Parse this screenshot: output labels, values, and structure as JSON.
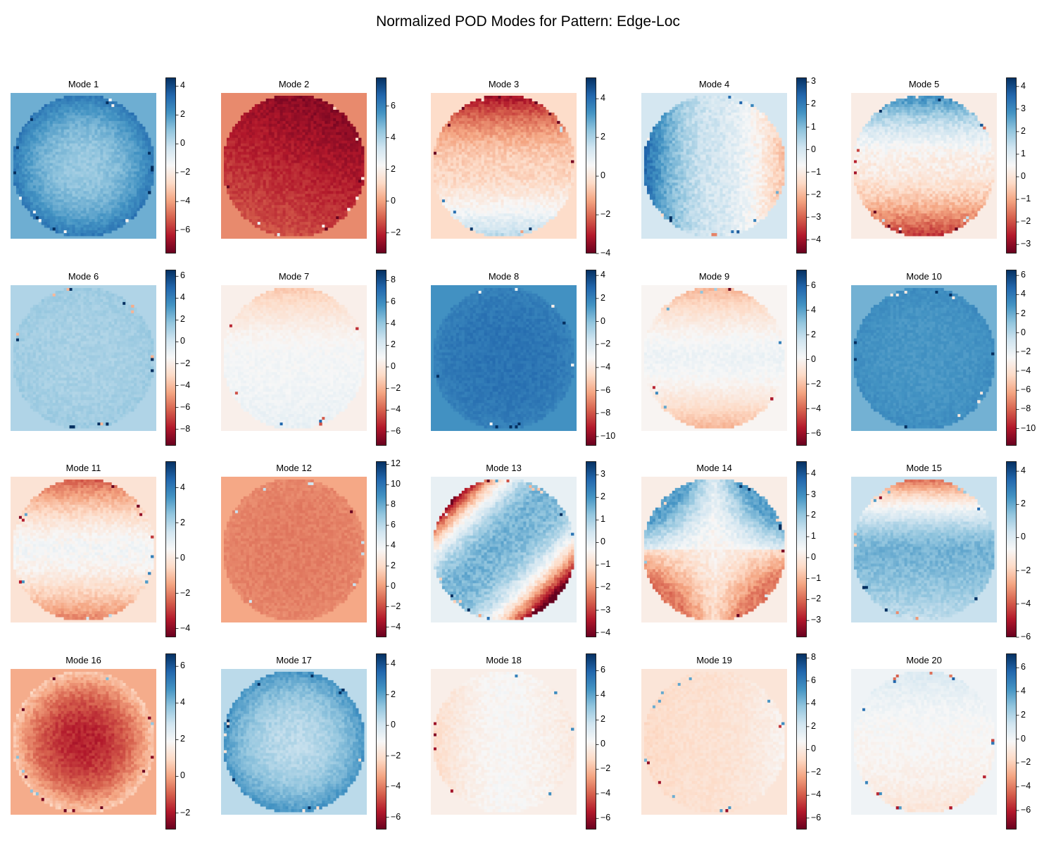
{
  "figure_title": "Normalized POD Modes for Pattern: Edge-Loc",
  "colormap": {
    "name": "RdBu",
    "stops": [
      "#67001f",
      "#b2182b",
      "#d6604d",
      "#f4a582",
      "#fddbc7",
      "#f7f7f7",
      "#d1e5f0",
      "#92c5de",
      "#4393c3",
      "#2166ac",
      "#053061"
    ]
  },
  "chart_data": [
    {
      "type": "heatmap",
      "title": "Mode 1",
      "colorbar": {
        "min": -7.6,
        "max": 4.6,
        "ticks": [
          4,
          2,
          0,
          -2,
          -4,
          -6
        ]
      },
      "background": 1.5,
      "pattern": "ring",
      "center": 0.8,
      "edge": 3.0
    },
    {
      "type": "heatmap",
      "title": "Mode 2",
      "colorbar": {
        "min": -3.3,
        "max": 7.8,
        "ticks": [
          6,
          4,
          2,
          0,
          -2
        ]
      },
      "background": -0.4,
      "pattern": "gradient_diag",
      "center": -1.0,
      "edge": -2.8
    },
    {
      "type": "heatmap",
      "title": "Mode 3",
      "colorbar": {
        "min": -4.0,
        "max": 5.1,
        "ticks": [
          4,
          2,
          0,
          -2,
          -4
        ]
      },
      "background": -0.3,
      "pattern": "vertical",
      "center": -0.5,
      "edge": -3.5,
      "edge2": 2.0
    },
    {
      "type": "heatmap",
      "title": "Mode 4",
      "colorbar": {
        "min": -4.6,
        "max": 3.2,
        "ticks": [
          3,
          2,
          1,
          0,
          -1,
          -2,
          -3,
          -4
        ]
      },
      "background": 0.0,
      "pattern": "horizontal",
      "center": 0.0,
      "edge": 2.5,
      "edge2": -2.0
    },
    {
      "type": "heatmap",
      "title": "Mode 5",
      "colorbar": {
        "min": -3.4,
        "max": 4.4,
        "ticks": [
          4,
          3,
          2,
          1,
          0,
          -1,
          -2,
          -3
        ]
      },
      "background": 0.2,
      "pattern": "vertical",
      "center": 0.2,
      "edge": 3.2,
      "edge2": -2.5
    },
    {
      "type": "heatmap",
      "title": "Mode 6",
      "colorbar": {
        "min": -9.5,
        "max": 6.6,
        "ticks": [
          6,
          4,
          2,
          0,
          -2,
          -4,
          -6,
          -8
        ]
      },
      "background": 1.0,
      "pattern": "uniform",
      "center": 1.2,
      "edge": 1.5
    },
    {
      "type": "heatmap",
      "title": "Mode 7",
      "colorbar": {
        "min": -7.3,
        "max": 9.0,
        "ticks": [
          8,
          6,
          4,
          2,
          0,
          -2,
          -4,
          -6
        ]
      },
      "background": 0.4,
      "pattern": "vertical",
      "center": 1.0,
      "edge": -1.5,
      "edge2": 1.5
    },
    {
      "type": "heatmap",
      "title": "Mode 8",
      "colorbar": {
        "min": -10.8,
        "max": 4.5,
        "ticks": [
          4,
          2,
          0,
          -2,
          -4,
          -6,
          -8,
          -10
        ]
      },
      "background": 1.5,
      "pattern": "uniform",
      "center": 2.5,
      "edge": 2.0
    },
    {
      "type": "heatmap",
      "title": "Mode 9",
      "colorbar": {
        "min": -7.0,
        "max": 7.3,
        "ticks": [
          6,
          4,
          2,
          0,
          -2,
          -4,
          -6
        ]
      },
      "background": 0.0,
      "pattern": "vertical",
      "center": 0.5,
      "edge": -2.5,
      "edge2": -2.5
    },
    {
      "type": "heatmap",
      "title": "Mode 10",
      "colorbar": {
        "min": -11.8,
        "max": 6.6,
        "ticks": [
          6,
          4,
          2,
          0,
          -2,
          -4,
          -6,
          -8,
          -10
        ]
      },
      "background": 1.8,
      "pattern": "uniform",
      "center": 2.8,
      "edge": 3.2
    },
    {
      "type": "heatmap",
      "title": "Mode 11",
      "colorbar": {
        "min": -4.5,
        "max": 5.5,
        "ticks": [
          4,
          2,
          0,
          -2,
          -4
        ]
      },
      "background": -0.2,
      "pattern": "vertical",
      "center": 0.6,
      "edge": -2.8,
      "edge2": -2.2
    },
    {
      "type": "heatmap",
      "title": "Mode 12",
      "colorbar": {
        "min": -5.0,
        "max": 12.3,
        "ticks": [
          12,
          10,
          8,
          6,
          4,
          2,
          0,
          -2,
          -4
        ]
      },
      "background": 0.3,
      "pattern": "uniform",
      "center": -0.8,
      "edge": -0.5
    },
    {
      "type": "heatmap",
      "title": "Mode 13",
      "colorbar": {
        "min": -4.2,
        "max": 3.6,
        "ticks": [
          3,
          2,
          1,
          0,
          -1,
          -2,
          -3,
          -4
        ]
      },
      "background": 0.0,
      "pattern": "band_diag",
      "center": 1.5,
      "edge": -3.0
    },
    {
      "type": "heatmap",
      "title": "Mode 14",
      "colorbar": {
        "min": -3.8,
        "max": 4.6,
        "ticks": [
          4,
          3,
          2,
          1,
          0,
          -1,
          -2,
          -3
        ]
      },
      "background": 0.1,
      "pattern": "quadrant",
      "center": 0.2,
      "edge": 2.5,
      "edge2": -2.0
    },
    {
      "type": "heatmap",
      "title": "Mode 15",
      "colorbar": {
        "min": -6.0,
        "max": 4.6,
        "ticks": [
          4,
          2,
          0,
          -2,
          -4,
          -6
        ]
      },
      "background": 0.5,
      "pattern": "vertical",
      "center": 1.8,
      "edge": -4.0,
      "edge2": 0.5
    },
    {
      "type": "heatmap",
      "title": "Mode 16",
      "colorbar": {
        "min": -2.9,
        "max": 6.7,
        "ticks": [
          6,
          4,
          2,
          0,
          -2
        ]
      },
      "background": 0.1,
      "pattern": "ring",
      "center": -1.8,
      "edge": 0.8
    },
    {
      "type": "heatmap",
      "title": "Mode 17",
      "colorbar": {
        "min": -6.8,
        "max": 4.7,
        "ticks": [
          4,
          2,
          0,
          -2,
          -4,
          -6
        ]
      },
      "background": 0.5,
      "pattern": "ring",
      "center": 0.5,
      "edge": 2.5
    },
    {
      "type": "heatmap",
      "title": "Mode 18",
      "colorbar": {
        "min": -6.9,
        "max": 7.4,
        "ticks": [
          6,
          4,
          2,
          0,
          -2,
          -4,
          -6
        ]
      },
      "background": -0.2,
      "pattern": "horizontal",
      "center": 0.2,
      "edge": -1.2,
      "edge2": -0.5
    },
    {
      "type": "heatmap",
      "title": "Mode 19",
      "colorbar": {
        "min": -7.0,
        "max": 8.4,
        "ticks": [
          8,
          6,
          4,
          2,
          0,
          -2,
          -4,
          -6
        ]
      },
      "background": -0.3,
      "pattern": "horizontal",
      "center": -0.5,
      "edge": -0.8,
      "edge2": 0.5
    },
    {
      "type": "heatmap",
      "title": "Mode 20",
      "colorbar": {
        "min": -7.6,
        "max": 7.2,
        "ticks": [
          6,
          4,
          2,
          0,
          -2,
          -4,
          -6
        ]
      },
      "background": 0.1,
      "pattern": "vertical",
      "center": -0.3,
      "edge": 1.0,
      "edge2": -1.2
    }
  ]
}
